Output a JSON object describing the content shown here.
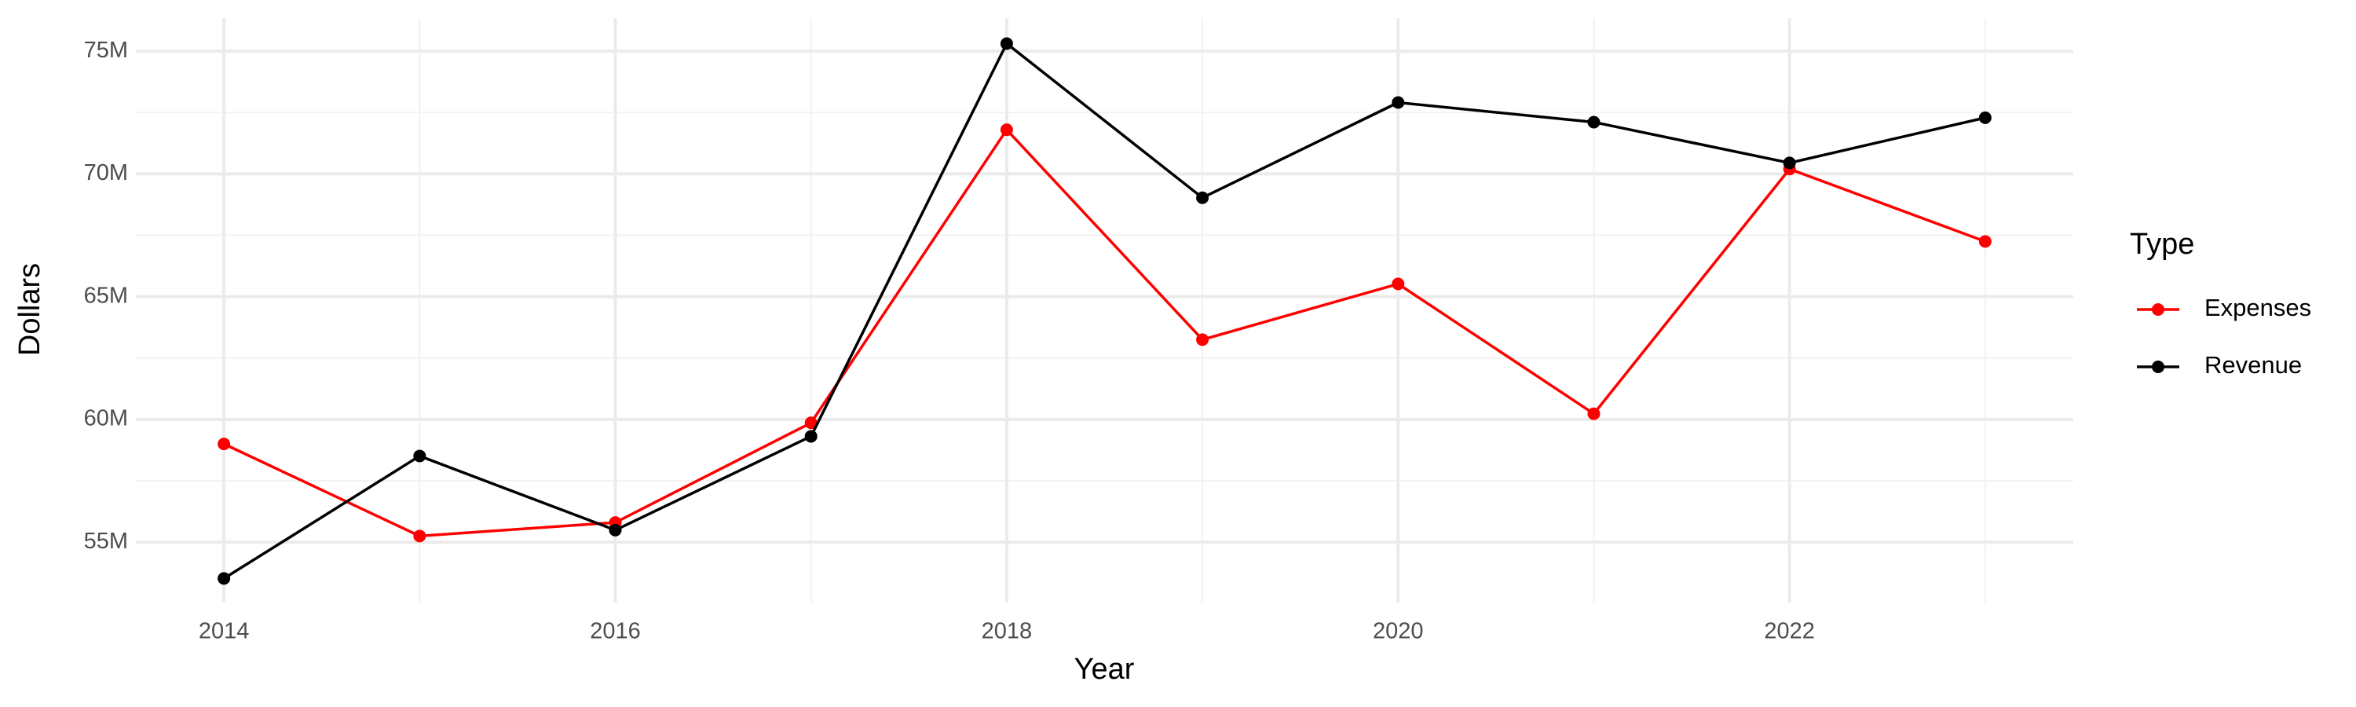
{
  "chart_data": {
    "type": "line",
    "x_label": "Year",
    "y_label": "Dollars",
    "legend_title": "Type",
    "x": [
      2014,
      2015,
      2016,
      2017,
      2018,
      2019,
      2020,
      2021,
      2022,
      2023
    ],
    "series": [
      {
        "name": "Expenses",
        "color": "#ff0000",
        "values": [
          59000000,
          55250000,
          55800000,
          59860000,
          71800000,
          63250000,
          65520000,
          60230000,
          70200000,
          67250000
        ]
      },
      {
        "name": "Revenue",
        "color": "#000000",
        "values": [
          53520000,
          58510000,
          55490000,
          59310000,
          75310000,
          69030000,
          72910000,
          72110000,
          70450000,
          72290000
        ]
      }
    ],
    "xlim": [
      2013.55,
      2023.45
    ],
    "xticks": [
      2014,
      2016,
      2018,
      2020,
      2022
    ],
    "ylim": [
      52540000,
      76350000
    ],
    "yticks": [
      {
        "value": 55000000,
        "label": "55M"
      },
      {
        "value": 60000000,
        "label": "60M"
      },
      {
        "value": 65000000,
        "label": "65M"
      },
      {
        "value": 70000000,
        "label": "70M"
      },
      {
        "value": 75000000,
        "label": "75M"
      }
    ],
    "grid": true,
    "legend_position": "right"
  }
}
